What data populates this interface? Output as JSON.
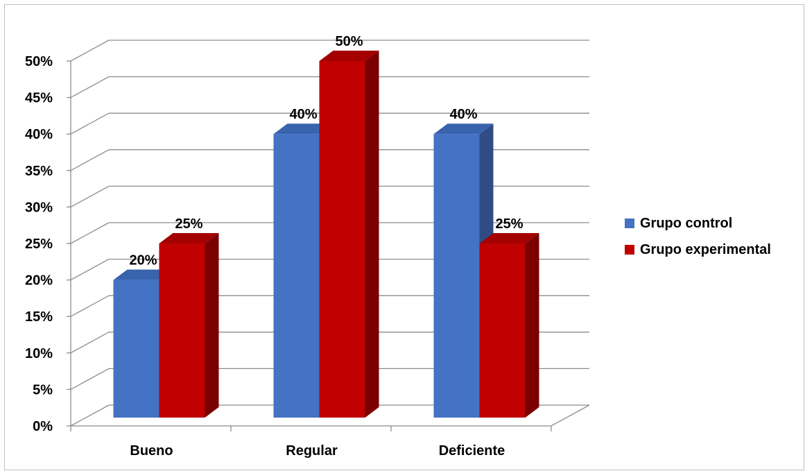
{
  "chart_data": {
    "type": "bar",
    "categories": [
      "Bueno",
      "Regular",
      "Deficiente"
    ],
    "series": [
      {
        "name": "Grupo control",
        "values": [
          20,
          40,
          40
        ],
        "labels": [
          "20%",
          "40%",
          "40%"
        ],
        "color": "#4472C4",
        "side_color": "#2F4C84",
        "top_color": "#3A63AE"
      },
      {
        "name": "Grupo experimental",
        "values": [
          25,
          50,
          25
        ],
        "labels": [
          "25%",
          "50%",
          "25%"
        ],
        "color": "#C00000",
        "side_color": "#7A0000",
        "top_color": "#A40000"
      }
    ],
    "yticks": [
      "0%",
      "5%",
      "10%",
      "15%",
      "20%",
      "25%",
      "30%",
      "35%",
      "40%",
      "45%",
      "50%"
    ],
    "ylim": [
      0,
      50
    ],
    "grid": true,
    "legend_position": "right",
    "style": "3d-clustered-column"
  }
}
